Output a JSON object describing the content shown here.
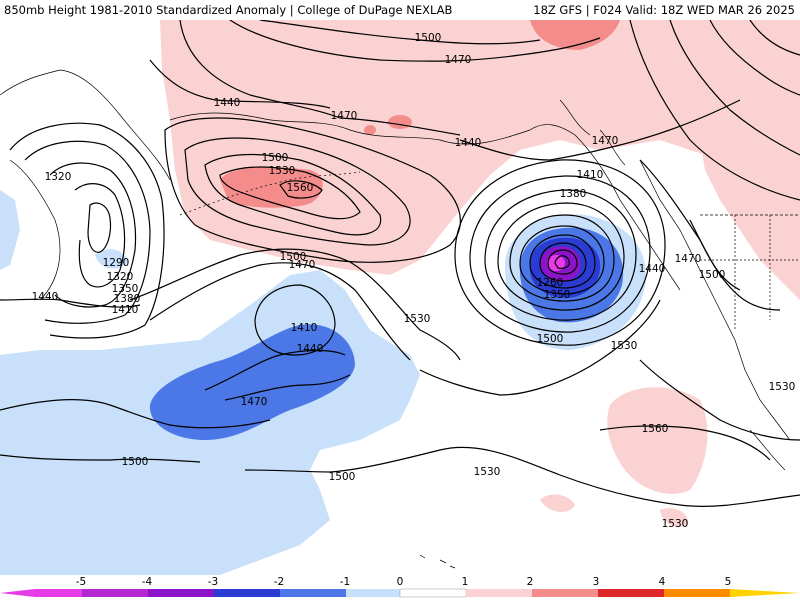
{
  "title": {
    "left": "850mb Height 1981-2010 Standardized Anomaly | College of DuPage NEXLAB",
    "right": "18Z GFS | F024 Valid: 18Z WED MAR 26 2025"
  },
  "colors": {
    "neg5": "#e63ce6",
    "neg4": "#8c14c8",
    "neg3": "#2a3cd2",
    "neg2": "#4b78e6",
    "neg1": "#c8e0fa",
    "zero": "#ffffff",
    "pos1": "#fad2d2",
    "pos2": "#f58c8c",
    "pos3": "#dc2828",
    "pos4": "#a00000",
    "pos5": "#ff8c00",
    "pos5b": "#ffd200"
  },
  "contour_labels": [
    {
      "id": "c1500-north",
      "text": "1500"
    },
    {
      "id": "c1470-north",
      "text": "1470"
    },
    {
      "id": "c1440-west",
      "text": "1440"
    },
    {
      "id": "c1470-alaska",
      "text": "1470"
    },
    {
      "id": "c1500-high",
      "text": "1500"
    },
    {
      "id": "c1530-high",
      "text": "1530"
    },
    {
      "id": "c1560-high",
      "text": "1560"
    },
    {
      "id": "c1320-left",
      "text": "1320"
    },
    {
      "id": "c1290",
      "text": "1290"
    },
    {
      "id": "c1320",
      "text": "1320"
    },
    {
      "id": "c1350",
      "text": "1350"
    },
    {
      "id": "c1380",
      "text": "1380"
    },
    {
      "id": "c1410",
      "text": "1410"
    },
    {
      "id": "c1440-sw",
      "text": "1440"
    },
    {
      "id": "c1500-mid",
      "text": "1500"
    },
    {
      "id": "c1470-mid",
      "text": "1470"
    },
    {
      "id": "c1410-low",
      "text": "1410"
    },
    {
      "id": "c1440-low",
      "text": "1440"
    },
    {
      "id": "c1470-low",
      "text": "1470"
    },
    {
      "id": "c1530-center",
      "text": "1530"
    },
    {
      "id": "c1500-sw",
      "text": "1500"
    },
    {
      "id": "c1500-south",
      "text": "1500"
    },
    {
      "id": "c1530-south",
      "text": "1530"
    },
    {
      "id": "c1440-gulf",
      "text": "1440"
    },
    {
      "id": "c1470-bc",
      "text": "1470"
    },
    {
      "id": "c1410-bc",
      "text": "1410"
    },
    {
      "id": "c1380-bc",
      "text": "1380"
    },
    {
      "id": "c1260",
      "text": "1260"
    },
    {
      "id": "c1350-bc",
      "text": "1350"
    },
    {
      "id": "c1500-bc",
      "text": "1500"
    },
    {
      "id": "c1530-bc",
      "text": "1530"
    },
    {
      "id": "c1440-east",
      "text": "1440"
    },
    {
      "id": "c1470-east",
      "text": "1470"
    },
    {
      "id": "c1500-east",
      "text": "1500"
    },
    {
      "id": "c1560-se",
      "text": "1560"
    },
    {
      "id": "c1530-se",
      "text": "1530"
    },
    {
      "id": "c1530-far-e",
      "text": "1530"
    }
  ],
  "colorbar": {
    "labels": [
      "-5",
      "-4",
      "-3",
      "-2",
      "-1",
      "0",
      "1",
      "2",
      "3",
      "4",
      "5"
    ]
  }
}
